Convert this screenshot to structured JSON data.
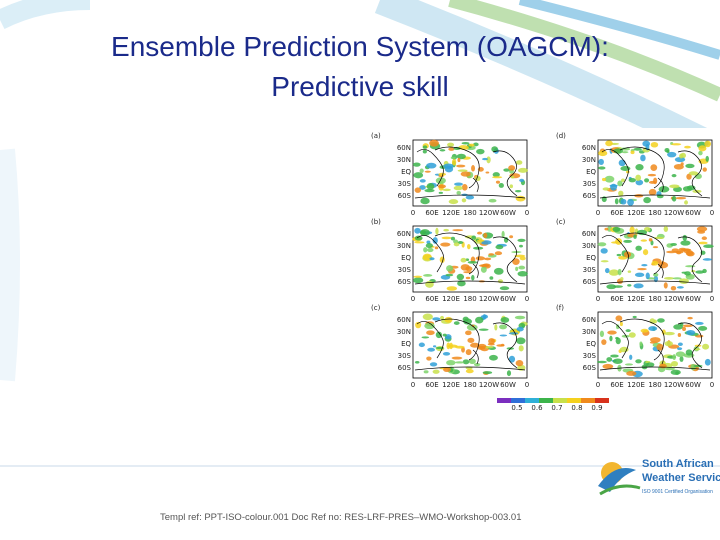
{
  "title": [
    "Ensemble Prediction System (OAGCM):",
    "Predictive skill"
  ],
  "figure": {
    "panels": [
      {
        "label": "(a)"
      },
      {
        "label": "(d)"
      },
      {
        "label": "(b)"
      },
      {
        "label": "(c)"
      },
      {
        "label": "(c)"
      },
      {
        "label": "(f)"
      }
    ],
    "lat_labels": [
      "60N",
      "30N",
      "EQ",
      "30S",
      "60S"
    ],
    "lon_labels": [
      "0",
      "60E",
      "120E",
      "180",
      "120W",
      "60W",
      "0"
    ],
    "colorbar_labels": [
      "0.5",
      "0.6",
      "0.7",
      "0.8",
      "0.9"
    ]
  },
  "footer": "Templ ref: PPT-ISO-colour.001   Doc Ref no: RES-LRF-PRES–WMO-Workshop-003.01",
  "logo": {
    "name_lines": [
      "South African",
      "Weather Service"
    ],
    "cert": "ISO 9001 Certified Organisation"
  }
}
